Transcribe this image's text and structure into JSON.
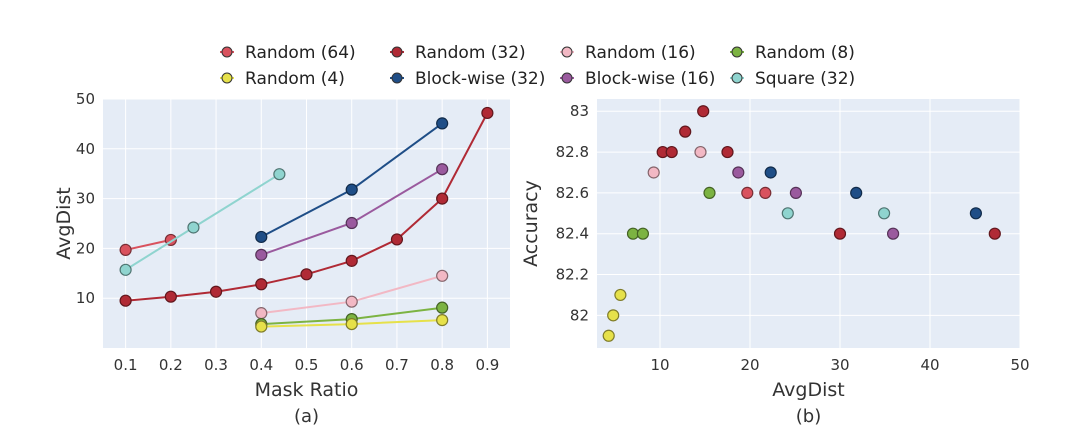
{
  "colors": {
    "Random (64)": "#d9525e",
    "Random (32)": "#b02a35",
    "Random (16)": "#f2b8c4",
    "Random (8)": "#7cb342",
    "Random (4)": "#e6e14a",
    "Block-wise (32)": "#1f4e87",
    "Block-wise (16)": "#9a5a9e",
    "Square (32)": "#8fd4cf"
  },
  "legend": [
    "Random (64)",
    "Random (32)",
    "Random (16)",
    "Random (8)",
    "Random (4)",
    "Block-wise (32)",
    "Block-wise (16)",
    "Square (32)"
  ],
  "chart_data": [
    {
      "type": "line",
      "caption": "(a)",
      "xlabel": "Mask Ratio",
      "ylabel": "AvgDist",
      "xlim": [
        0.05,
        0.95
      ],
      "ylim": [
        0,
        50
      ],
      "xticks": [
        "0.1",
        "0.2",
        "0.3",
        "0.4",
        "0.5",
        "0.6",
        "0.7",
        "0.8",
        "0.9"
      ],
      "yticks": [
        "10",
        "20",
        "30",
        "40",
        "50"
      ],
      "grid": true,
      "series": [
        {
          "name": "Random (64)",
          "x": [
            0.1,
            0.2
          ],
          "y": [
            19.7,
            21.7
          ]
        },
        {
          "name": "Random (32)",
          "x": [
            0.1,
            0.2,
            0.3,
            0.4,
            0.5,
            0.6,
            0.7,
            0.8,
            0.9
          ],
          "y": [
            9.5,
            10.3,
            11.3,
            12.8,
            14.8,
            17.5,
            21.8,
            30.0,
            47.2
          ]
        },
        {
          "name": "Random (16)",
          "x": [
            0.4,
            0.6,
            0.8
          ],
          "y": [
            7.0,
            9.3,
            14.5
          ]
        },
        {
          "name": "Random (8)",
          "x": [
            0.4,
            0.6,
            0.8
          ],
          "y": [
            4.8,
            5.8,
            8.1
          ]
        },
        {
          "name": "Random (4)",
          "x": [
            0.4,
            0.6,
            0.8
          ],
          "y": [
            4.3,
            4.8,
            5.6
          ]
        },
        {
          "name": "Block-wise (32)",
          "x": [
            0.4,
            0.6,
            0.8
          ],
          "y": [
            22.3,
            31.8,
            45.1
          ]
        },
        {
          "name": "Block-wise (16)",
          "x": [
            0.4,
            0.6,
            0.8
          ],
          "y": [
            18.7,
            25.1,
            35.9
          ]
        },
        {
          "name": "Square (32)",
          "x": [
            0.1,
            0.25,
            0.44
          ],
          "y": [
            15.7,
            24.2,
            34.9
          ]
        }
      ]
    },
    {
      "type": "scatter",
      "caption": "(b)",
      "xlabel": "AvgDist",
      "ylabel": "Accuracy",
      "xlim": [
        3,
        50
      ],
      "ylim": [
        81.84,
        83.06
      ],
      "xticks": [
        "10",
        "20",
        "30",
        "40",
        "50"
      ],
      "yticks": [
        "82",
        "82.2",
        "82.4",
        "82.6",
        "82.8",
        "83"
      ],
      "grid": true,
      "series": [
        {
          "name": "Random (64)",
          "x": [
            19.7,
            21.7
          ],
          "y": [
            82.6,
            82.6
          ]
        },
        {
          "name": "Random (32)",
          "x": [
            10.3,
            11.3,
            12.8,
            14.8,
            17.5,
            30.0,
            47.2
          ],
          "y": [
            82.8,
            82.8,
            82.9,
            83.0,
            82.8,
            82.4,
            82.4
          ]
        },
        {
          "name": "Random (16)",
          "x": [
            9.3,
            14.5
          ],
          "y": [
            82.7,
            82.8
          ]
        },
        {
          "name": "Random (8)",
          "x": [
            7.0,
            8.1,
            15.5
          ],
          "y": [
            82.4,
            82.4,
            82.6
          ]
        },
        {
          "name": "Random (4)",
          "x": [
            4.3,
            4.8,
            5.6
          ],
          "y": [
            81.9,
            82.0,
            82.1
          ]
        },
        {
          "name": "Block-wise (32)",
          "x": [
            22.3,
            31.8,
            45.1
          ],
          "y": [
            82.7,
            82.6,
            82.5
          ]
        },
        {
          "name": "Block-wise (16)",
          "x": [
            18.7,
            25.1,
            35.9
          ],
          "y": [
            82.7,
            82.6,
            82.4
          ]
        },
        {
          "name": "Square (32)",
          "x": [
            24.2,
            34.9
          ],
          "y": [
            82.5,
            82.5
          ]
        }
      ]
    }
  ]
}
